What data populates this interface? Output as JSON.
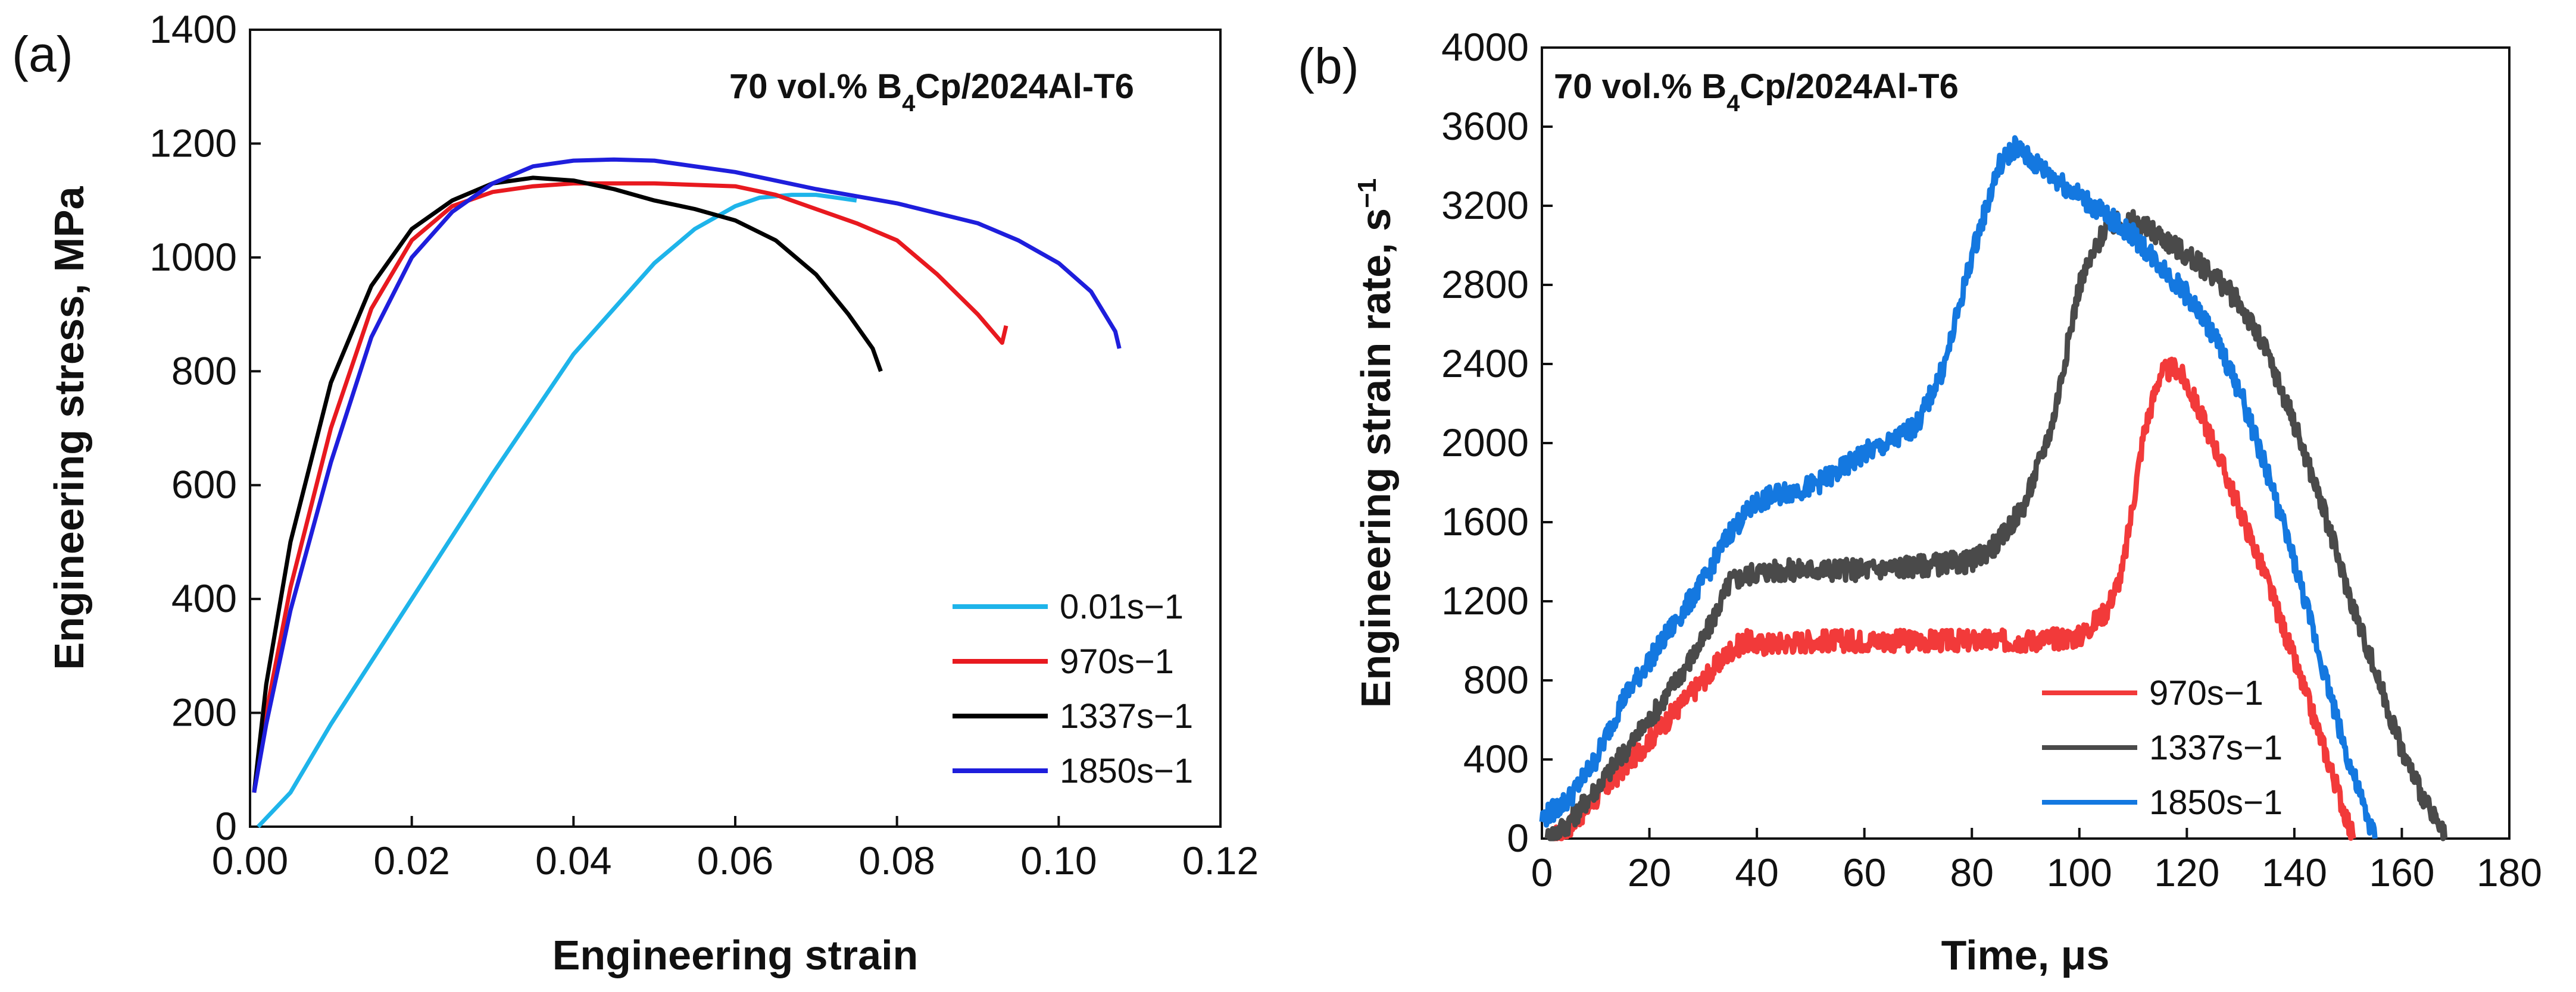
{
  "chart_data": [
    {
      "panel_label": "(a)",
      "type": "line",
      "annotation": "70 vol.% B4Cp/2024Al-T6",
      "xlabel": "Engineering strain",
      "ylabel": "Engineering stress, MPa",
      "xlim": [
        0,
        0.12
      ],
      "ylim": [
        0,
        1400
      ],
      "xticks": [
        0,
        0.02,
        0.04,
        0.06,
        0.08,
        0.1,
        0.12
      ],
      "xtick_labels": [
        "0.00",
        "0.02",
        "0.04",
        "0.06",
        "0.08",
        "0.10",
        "0.12"
      ],
      "yticks": [
        0,
        200,
        400,
        600,
        800,
        1000,
        1200,
        1400
      ],
      "ytick_labels": [
        "0",
        "200",
        "400",
        "600",
        "800",
        "1000",
        "1200",
        "1400"
      ],
      "legend_position": "lower-right",
      "series": [
        {
          "name": "0.01s−1",
          "rate": "0.01",
          "color": "#1eb4ea",
          "x": [
            0.001,
            0.005,
            0.01,
            0.02,
            0.03,
            0.04,
            0.05,
            0.055,
            0.06,
            0.063,
            0.067,
            0.07,
            0.075
          ],
          "y": [
            0,
            60,
            180,
            400,
            620,
            830,
            990,
            1050,
            1090,
            1105,
            1110,
            1110,
            1100
          ]
        },
        {
          "name": "970s−1",
          "rate": "970",
          "color": "#e8191f",
          "x": [
            0.0005,
            0.002,
            0.005,
            0.01,
            0.015,
            0.02,
            0.025,
            0.03,
            0.035,
            0.04,
            0.05,
            0.06,
            0.065,
            0.07,
            0.075,
            0.08,
            0.085,
            0.09,
            0.093,
            0.0935
          ],
          "y": [
            60,
            200,
            420,
            700,
            910,
            1030,
            1090,
            1115,
            1125,
            1130,
            1130,
            1125,
            1110,
            1085,
            1060,
            1030,
            970,
            900,
            850,
            880
          ]
        },
        {
          "name": "1337s−1",
          "rate": "1337",
          "color": "#000000",
          "x": [
            0.0005,
            0.002,
            0.005,
            0.01,
            0.015,
            0.02,
            0.025,
            0.03,
            0.035,
            0.04,
            0.045,
            0.05,
            0.055,
            0.06,
            0.065,
            0.07,
            0.074,
            0.077,
            0.078
          ],
          "y": [
            60,
            250,
            500,
            780,
            950,
            1050,
            1100,
            1130,
            1140,
            1135,
            1120,
            1100,
            1085,
            1065,
            1030,
            970,
            900,
            840,
            800
          ]
        },
        {
          "name": "1850s−1",
          "rate": "1850",
          "color": "#1e1edc",
          "x": [
            0.0005,
            0.002,
            0.005,
            0.01,
            0.015,
            0.02,
            0.025,
            0.03,
            0.035,
            0.04,
            0.045,
            0.05,
            0.06,
            0.07,
            0.08,
            0.09,
            0.095,
            0.1,
            0.104,
            0.107,
            0.1075
          ],
          "y": [
            60,
            180,
            380,
            640,
            860,
            1000,
            1080,
            1130,
            1160,
            1170,
            1172,
            1170,
            1150,
            1120,
            1095,
            1060,
            1030,
            990,
            940,
            870,
            840
          ]
        }
      ]
    },
    {
      "panel_label": "(b)",
      "type": "line",
      "annotation": "70 vol.% B4Cp/2024Al-T6",
      "xlabel": "Time, μs",
      "ylabel": "Engineering strain rate, s−1",
      "xlim": [
        0,
        180
      ],
      "ylim": [
        0,
        4000
      ],
      "xticks": [
        0,
        20,
        40,
        60,
        80,
        100,
        120,
        140,
        160,
        180
      ],
      "xtick_labels": [
        "0",
        "20",
        "40",
        "60",
        "80",
        "100",
        "120",
        "140",
        "160",
        "180"
      ],
      "yticks": [
        0,
        400,
        800,
        1200,
        1600,
        2000,
        2400,
        2800,
        3200,
        3600,
        4000
      ],
      "ytick_labels": [
        "0",
        "400",
        "800",
        "1200",
        "1600",
        "2000",
        "2400",
        "2800",
        "3200",
        "3600",
        "4000"
      ],
      "legend_position": "lower-right",
      "series": [
        {
          "name": "970s−1",
          "rate": "970",
          "color": "#f23a3a",
          "x": [
            2,
            5,
            10,
            20,
            30,
            35,
            38,
            40,
            50,
            60,
            70,
            80,
            90,
            100,
            105,
            108,
            110,
            112,
            115,
            118,
            120,
            125,
            130,
            135,
            140,
            145,
            148,
            150,
            151
          ],
          "y": [
            0,
            60,
            200,
            500,
            800,
            950,
            1000,
            980,
            1000,
            1000,
            1000,
            1000,
            1000,
            1020,
            1150,
            1350,
            1700,
            2050,
            2350,
            2380,
            2300,
            2000,
            1650,
            1300,
            900,
            500,
            250,
            80,
            0
          ]
        },
        {
          "name": "1337s−1",
          "rate": "1337",
          "color": "#4a4a4a",
          "x": [
            1,
            5,
            10,
            20,
            30,
            35,
            40,
            50,
            60,
            70,
            80,
            85,
            90,
            95,
            100,
            105,
            110,
            115,
            120,
            125,
            130,
            135,
            140,
            145,
            150,
            155,
            160,
            165,
            168
          ],
          "y": [
            0,
            80,
            250,
            600,
            1000,
            1300,
            1350,
            1360,
            1360,
            1380,
            1400,
            1500,
            1700,
            2100,
            2800,
            3100,
            3120,
            3050,
            2950,
            2850,
            2700,
            2450,
            2100,
            1700,
            1250,
            850,
            450,
            150,
            0
          ]
        },
        {
          "name": "1850s−1",
          "rate": "1850",
          "color": "#1478e0",
          "x": [
            0,
            5,
            10,
            15,
            20,
            25,
            30,
            35,
            40,
            45,
            50,
            55,
            60,
            65,
            70,
            75,
            80,
            85,
            88,
            90,
            95,
            100,
            105,
            110,
            115,
            120,
            125,
            130,
            135,
            140,
            145,
            150,
            153,
            155
          ],
          "y": [
            100,
            200,
            400,
            700,
            900,
            1100,
            1300,
            1550,
            1700,
            1750,
            1780,
            1850,
            1950,
            2000,
            2100,
            2400,
            2950,
            3400,
            3500,
            3450,
            3350,
            3250,
            3150,
            3050,
            2900,
            2750,
            2550,
            2250,
            1850,
            1400,
            900,
            400,
            150,
            0
          ]
        }
      ]
    }
  ]
}
